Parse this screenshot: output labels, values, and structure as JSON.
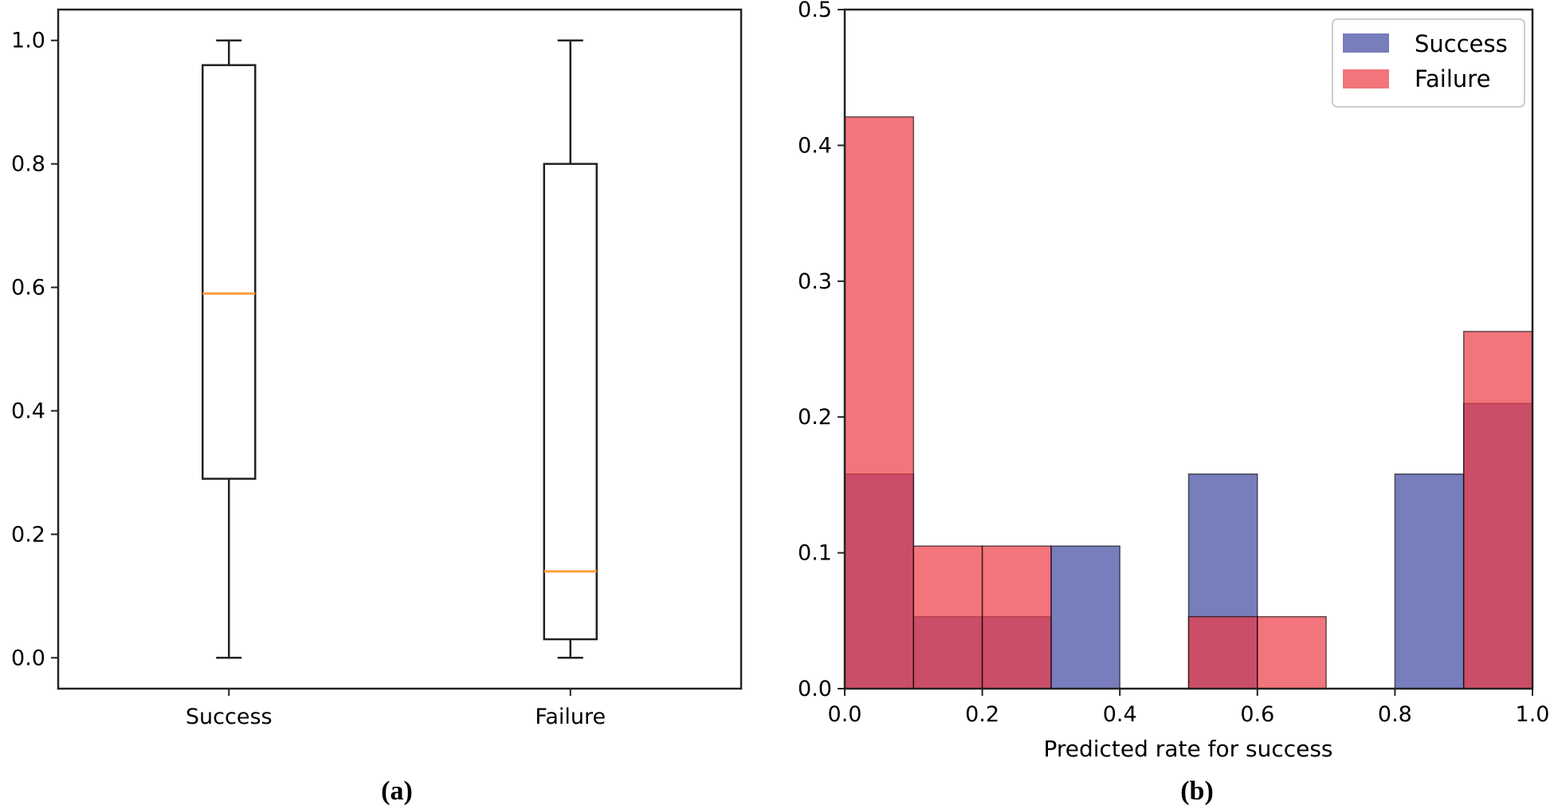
{
  "chart_data": [
    {
      "type": "boxplot",
      "caption": "(a)",
      "categories": [
        "Success",
        "Failure"
      ],
      "boxes": [
        {
          "name": "Success",
          "whisker_low": 0.0,
          "q1": 0.29,
          "median": 0.59,
          "q3": 0.96,
          "whisker_high": 1.0
        },
        {
          "name": "Failure",
          "whisker_low": 0.0,
          "q1": 0.03,
          "median": 0.14,
          "q3": 0.8,
          "whisker_high": 1.0
        }
      ],
      "ylim": [
        -0.05,
        1.05
      ],
      "yticks": [
        "0.0",
        "0.2",
        "0.4",
        "0.6",
        "0.8",
        "1.0"
      ],
      "colors": {
        "median": "#ff9e3a",
        "box": "#222222"
      }
    },
    {
      "type": "histogram",
      "caption": "(b)",
      "xlabel": "Predicted rate for success",
      "xlim": [
        0.0,
        1.0
      ],
      "ylim": [
        0.0,
        0.5
      ],
      "xticks": [
        "0.0",
        "0.2",
        "0.4",
        "0.6",
        "0.8",
        "1.0"
      ],
      "yticks": [
        "0.0",
        "0.1",
        "0.2",
        "0.3",
        "0.4",
        "0.5"
      ],
      "bin_edges": [
        0.0,
        0.1,
        0.2,
        0.3,
        0.4,
        0.5,
        0.6,
        0.7,
        0.8,
        0.9,
        1.0
      ],
      "series": [
        {
          "name": "Success",
          "color": "#3f46a0",
          "values": [
            0.158,
            0.053,
            0.053,
            0.105,
            0.0,
            0.158,
            0.0,
            0.0,
            0.158,
            0.21
          ]
        },
        {
          "name": "Failure",
          "color": "#ee3b45",
          "values": [
            0.421,
            0.105,
            0.105,
            0.0,
            0.0,
            0.053,
            0.053,
            0.0,
            0.0,
            0.263
          ]
        }
      ],
      "legend": {
        "position": "top-right",
        "entries": [
          "Success",
          "Failure"
        ]
      }
    }
  ]
}
